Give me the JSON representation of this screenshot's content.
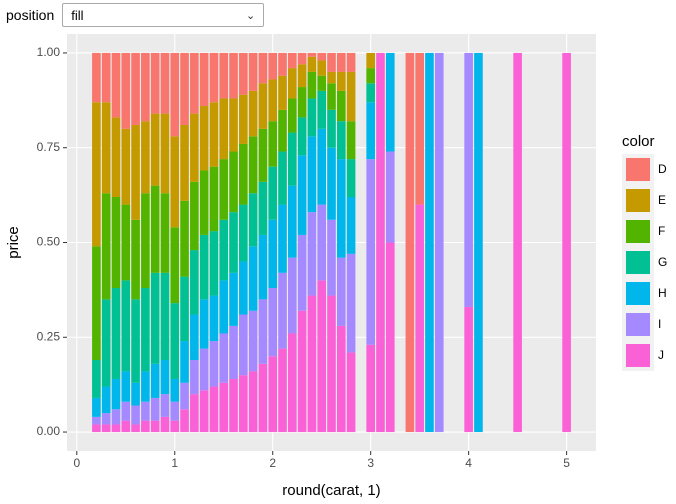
{
  "controls": {
    "position_label": "position",
    "position_value": "fill"
  },
  "chart_data": {
    "type": "bar",
    "stacked": true,
    "x_label": "round(carat, 1)",
    "y_label": "price",
    "legend_title": "color",
    "legend_position": "right",
    "grid": true,
    "x": [
      0.2,
      0.3,
      0.4,
      0.5,
      0.6,
      0.7,
      0.8,
      0.9,
      1.0,
      1.1,
      1.2,
      1.3,
      1.4,
      1.5,
      1.6,
      1.7,
      1.8,
      1.9,
      2.0,
      2.1,
      2.2,
      2.3,
      2.4,
      2.5,
      2.6,
      2.7,
      2.8,
      3.0,
      3.1,
      3.2,
      3.4,
      3.5,
      3.6,
      3.7,
      4.0,
      4.1,
      4.5,
      5.0
    ],
    "xlim": [
      -0.1,
      5.3
    ],
    "xticks": [
      0,
      1,
      2,
      3,
      4,
      5
    ],
    "ylim": [
      -0.05,
      1.05
    ],
    "yticks": [
      {
        "value": 0,
        "label": "0.00"
      },
      {
        "value": 0.25,
        "label": "0.25"
      },
      {
        "value": 0.5,
        "label": "0.50"
      },
      {
        "value": 0.75,
        "label": "0.75"
      },
      {
        "value": 1,
        "label": "1.00"
      }
    ],
    "series": [
      {
        "name": "D",
        "color": "#F8766D",
        "values": [
          0.13,
          0.13,
          0.17,
          0.2,
          0.19,
          0.18,
          0.16,
          0.16,
          0.22,
          0.19,
          0.16,
          0.14,
          0.13,
          0.12,
          0.12,
          0.11,
          0.1,
          0.08,
          0.07,
          0.06,
          0.04,
          0.03,
          0.01,
          0.02,
          0.05,
          0.05,
          0.05,
          0,
          0,
          0,
          1,
          0.4,
          0,
          0,
          0,
          0,
          0,
          0
        ]
      },
      {
        "name": "E",
        "color": "#C49A00",
        "values": [
          0.38,
          0.24,
          0.21,
          0.2,
          0.25,
          0.19,
          0.19,
          0.21,
          0.24,
          0.2,
          0.18,
          0.17,
          0.17,
          0.16,
          0.14,
          0.13,
          0.12,
          0.12,
          0.11,
          0.09,
          0.08,
          0.06,
          0.04,
          0.04,
          0.03,
          0.05,
          0.13,
          0.04,
          0,
          0,
          0,
          0,
          0,
          0,
          0,
          0,
          0,
          0
        ]
      },
      {
        "name": "F",
        "color": "#53B400",
        "values": [
          0.3,
          0.28,
          0.24,
          0.2,
          0.21,
          0.25,
          0.23,
          0.21,
          0.2,
          0.2,
          0.18,
          0.17,
          0.17,
          0.16,
          0.16,
          0.16,
          0.15,
          0.14,
          0.12,
          0.11,
          0.09,
          0.08,
          0.07,
          0.04,
          0.07,
          0.08,
          0.1,
          0.04,
          0,
          0,
          0,
          0,
          0,
          0,
          0,
          0,
          0,
          0
        ]
      },
      {
        "name": "G",
        "color": "#00C094",
        "values": [
          0.1,
          0.23,
          0.24,
          0.24,
          0.22,
          0.22,
          0.24,
          0.23,
          0.2,
          0.17,
          0.17,
          0.17,
          0.17,
          0.16,
          0.16,
          0.15,
          0.14,
          0.14,
          0.14,
          0.14,
          0.14,
          0.1,
          0.1,
          0.1,
          0.1,
          0.1,
          0.1,
          0.05,
          0,
          0,
          0,
          0,
          0,
          0,
          0,
          0,
          0,
          0
        ]
      },
      {
        "name": "H",
        "color": "#00B6EB",
        "values": [
          0.05,
          0.07,
          0.08,
          0.08,
          0.06,
          0.08,
          0.09,
          0.09,
          0.06,
          0.11,
          0.12,
          0.13,
          0.12,
          0.14,
          0.14,
          0.14,
          0.17,
          0.17,
          0.18,
          0.18,
          0.19,
          0.21,
          0.2,
          0.2,
          0.19,
          0.26,
          0.15,
          0.15,
          0,
          0.26,
          0,
          0,
          1,
          0,
          0,
          1,
          0,
          0
        ]
      },
      {
        "name": "I",
        "color": "#A58AFF",
        "values": [
          0.02,
          0.03,
          0.04,
          0.05,
          0.05,
          0.05,
          0.06,
          0.06,
          0.05,
          0.07,
          0.09,
          0.11,
          0.12,
          0.13,
          0.14,
          0.16,
          0.16,
          0.17,
          0.18,
          0.2,
          0.2,
          0.2,
          0.22,
          0.2,
          0.2,
          0.18,
          0.26,
          0.49,
          0,
          0.24,
          0,
          0,
          0,
          1,
          0.67,
          0,
          0,
          0
        ]
      },
      {
        "name": "J",
        "color": "#FB61D7",
        "values": [
          0.02,
          0.02,
          0.02,
          0.03,
          0.02,
          0.03,
          0.03,
          0.04,
          0.03,
          0.06,
          0.1,
          0.11,
          0.12,
          0.13,
          0.14,
          0.15,
          0.16,
          0.18,
          0.2,
          0.22,
          0.26,
          0.32,
          0.36,
          0.4,
          0.36,
          0.28,
          0.21,
          0.23,
          1,
          0.5,
          0,
          0.6,
          0,
          0,
          0.33,
          0,
          1,
          1
        ]
      }
    ]
  }
}
